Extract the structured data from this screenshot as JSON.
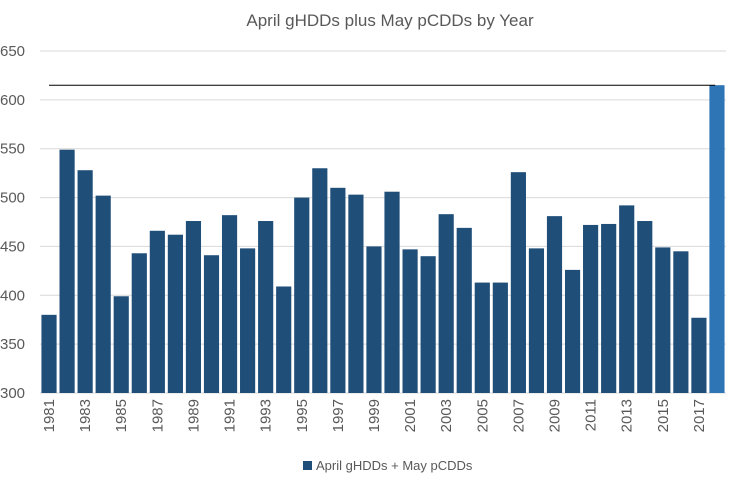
{
  "chart_data": {
    "type": "bar",
    "title": "April gHDDs plus May pCDDs by Year",
    "xlabel": "",
    "ylabel": "",
    "ylim": [
      300,
      650
    ],
    "yticks": [
      300,
      350,
      400,
      450,
      500,
      550,
      600,
      650
    ],
    "grid": true,
    "legend_position": "bottom",
    "categories": [
      "1981",
      "1982",
      "1983",
      "1984",
      "1985",
      "1986",
      "1987",
      "1988",
      "1989",
      "1990",
      "1991",
      "1992",
      "1993",
      "1994",
      "1995",
      "1996",
      "1997",
      "1998",
      "1999",
      "2000",
      "2001",
      "2002",
      "2003",
      "2004",
      "2005",
      "2006",
      "2007",
      "2008",
      "2009",
      "2010",
      "2011",
      "2012",
      "2013",
      "2014",
      "2015",
      "2016",
      "2017",
      "2018"
    ],
    "tick_labels": [
      "1981",
      "1983",
      "1985",
      "1987",
      "1989",
      "1991",
      "1993",
      "1995",
      "1997",
      "1999",
      "2001",
      "2003",
      "2005",
      "2007",
      "2009",
      "2011",
      "2013",
      "2015",
      "2017"
    ],
    "series": [
      {
        "name": "April gHDDs + May pCDDs",
        "color": "#1f4e79",
        "values": [
          380,
          549,
          528,
          502,
          399,
          443,
          466,
          462,
          476,
          441,
          482,
          448,
          476,
          409,
          500,
          530,
          510,
          503,
          450,
          506,
          447,
          440,
          483,
          469,
          413,
          413,
          526,
          448,
          481,
          426,
          472,
          473,
          492,
          476,
          449,
          445,
          377,
          615
        ]
      }
    ],
    "highlight": {
      "category": "2018",
      "color": "#2e75b6"
    },
    "reference_line": {
      "value": 615,
      "color": "#000000"
    }
  }
}
